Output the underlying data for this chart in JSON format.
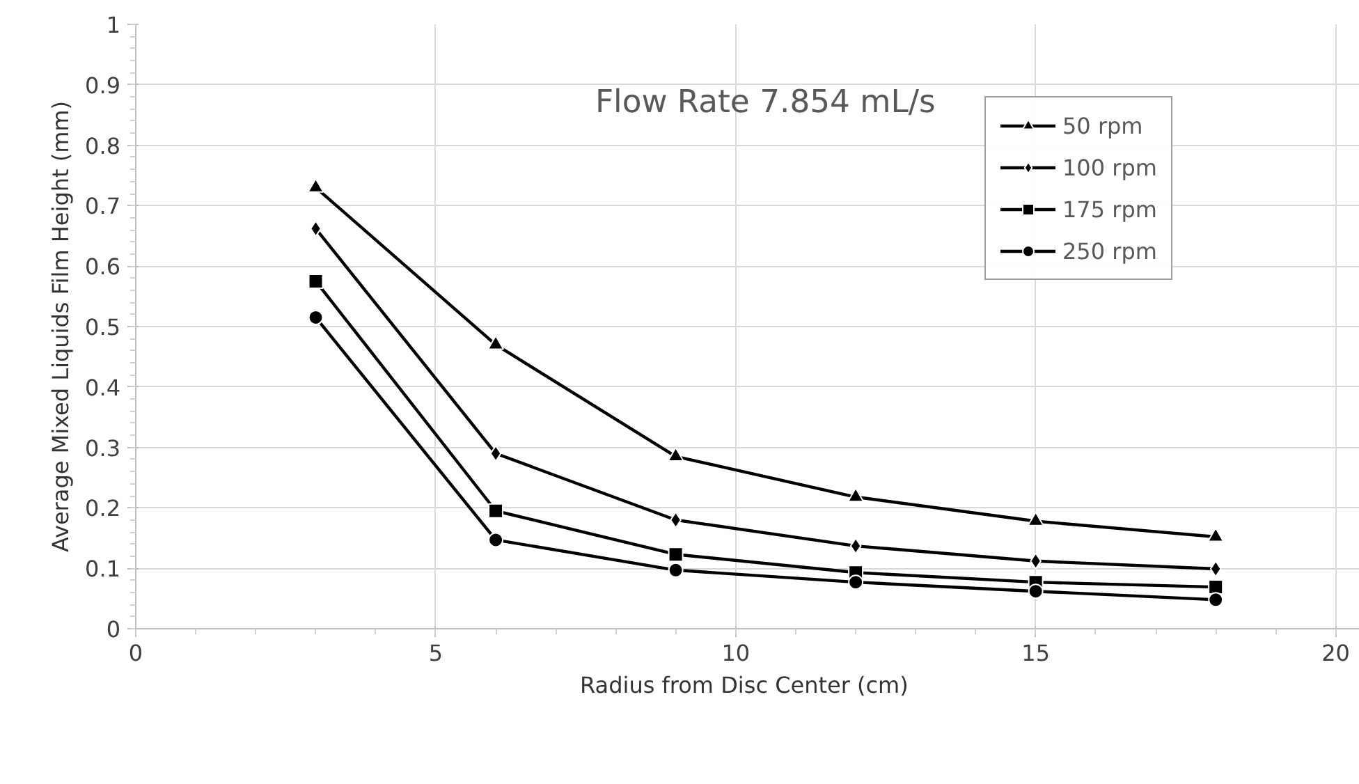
{
  "chart_data": {
    "type": "line",
    "title": "Flow Rate 7.854 mL/s",
    "xlabel": "Radius from Disc Center  (cm)",
    "ylabel": "Average Mixed Liquids Film Height (mm)",
    "x": [
      3,
      6,
      9,
      12,
      15,
      18
    ],
    "series": [
      {
        "name": "50 rpm",
        "color": "#000000",
        "marker": "triangle",
        "values": [
          0.73,
          0.47,
          0.285,
          0.218,
          0.178,
          0.152
        ]
      },
      {
        "name": "100 rpm",
        "color": "#000000",
        "marker": "diamond",
        "values": [
          0.662,
          0.29,
          0.18,
          0.137,
          0.112,
          0.099
        ]
      },
      {
        "name": "175 rpm",
        "color": "#000000",
        "marker": "square",
        "values": [
          0.575,
          0.195,
          0.123,
          0.093,
          0.077,
          0.069
        ]
      },
      {
        "name": "250 rpm",
        "color": "#000000",
        "marker": "circle",
        "values": [
          0.515,
          0.147,
          0.097,
          0.077,
          0.062,
          0.048
        ]
      }
    ],
    "xlim": [
      0,
      20.4
    ],
    "xticks": [
      0,
      5,
      10,
      15,
      20
    ],
    "ylim": [
      0,
      1
    ],
    "yticks": [
      0,
      0.1,
      0.2,
      0.3,
      0.4,
      0.5,
      0.6,
      0.7,
      0.8,
      0.9,
      1
    ],
    "grid": true,
    "legend": "top right",
    "line_style": "solid"
  }
}
